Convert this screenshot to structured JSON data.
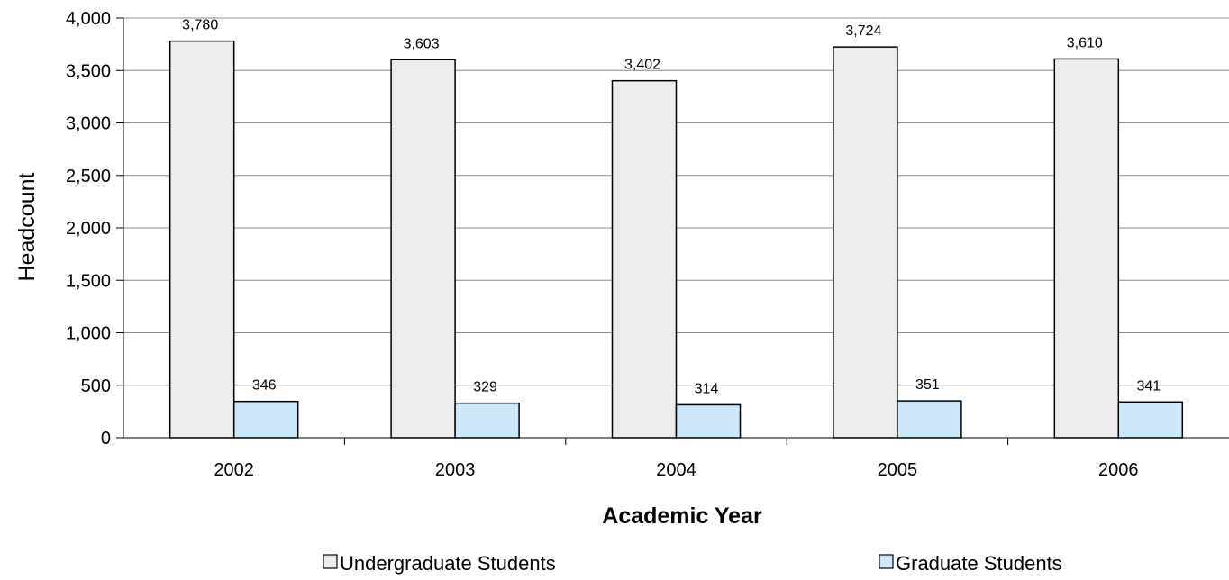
{
  "chart_data": {
    "type": "bar",
    "title": "",
    "xlabel": "Academic Year",
    "ylabel": "Headcount",
    "categories": [
      "2002",
      "2003",
      "2004",
      "2005",
      "2006"
    ],
    "series": [
      {
        "name": "Undergraduate Students",
        "values": [
          3780,
          3603,
          3402,
          3724,
          3610
        ],
        "labels": [
          "3,780",
          "3,603",
          "3,402",
          "3,724",
          "3,610"
        ],
        "color": "#ececec"
      },
      {
        "name": "Graduate Students",
        "values": [
          346,
          329,
          314,
          351,
          341
        ],
        "labels": [
          "346",
          "329",
          "314",
          "351",
          "341"
        ],
        "color": "#cce9fb"
      }
    ],
    "ylim": [
      0,
      4000
    ],
    "yticks": [
      0,
      500,
      1000,
      1500,
      2000,
      2500,
      3000,
      3500,
      4000
    ],
    "ytick_labels": [
      "0",
      "500",
      "1,000",
      "1,500",
      "2,000",
      "2,500",
      "3,000",
      "3,500",
      "4,000"
    ],
    "grid": true,
    "legend_position": "bottom"
  }
}
